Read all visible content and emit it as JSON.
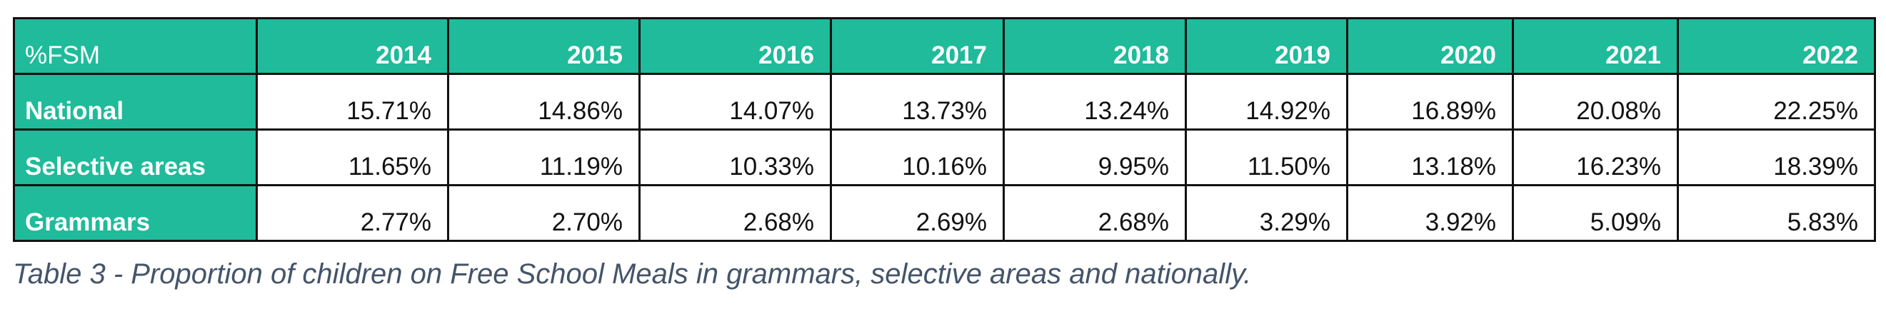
{
  "table": {
    "corner_label": "%FSM",
    "years": [
      "2014",
      "2015",
      "2016",
      "2017",
      "2018",
      "2019",
      "2020",
      "2021",
      "2022"
    ],
    "rows": [
      {
        "label": "National",
        "values": [
          "15.71%",
          "14.86%",
          "14.07%",
          "13.73%",
          "13.24%",
          "14.92%",
          "16.89%",
          "20.08%",
          "22.25%"
        ]
      },
      {
        "label": "Selective areas",
        "values": [
          "11.65%",
          "11.19%",
          "10.33%",
          "10.16%",
          "9.95%",
          "11.50%",
          "13.18%",
          "16.23%",
          "18.39%"
        ]
      },
      {
        "label": "Grammars",
        "values": [
          "2.77%",
          "2.70%",
          "2.68%",
          "2.69%",
          "2.68%",
          "3.29%",
          "3.92%",
          "5.09%",
          "5.83%"
        ]
      }
    ]
  },
  "caption": "Table 3 - Proportion of children on Free School Meals in grammars, selective areas and nationally.",
  "colors": {
    "header_fill": "#1fbb9a",
    "caption_text": "#44546a"
  }
}
